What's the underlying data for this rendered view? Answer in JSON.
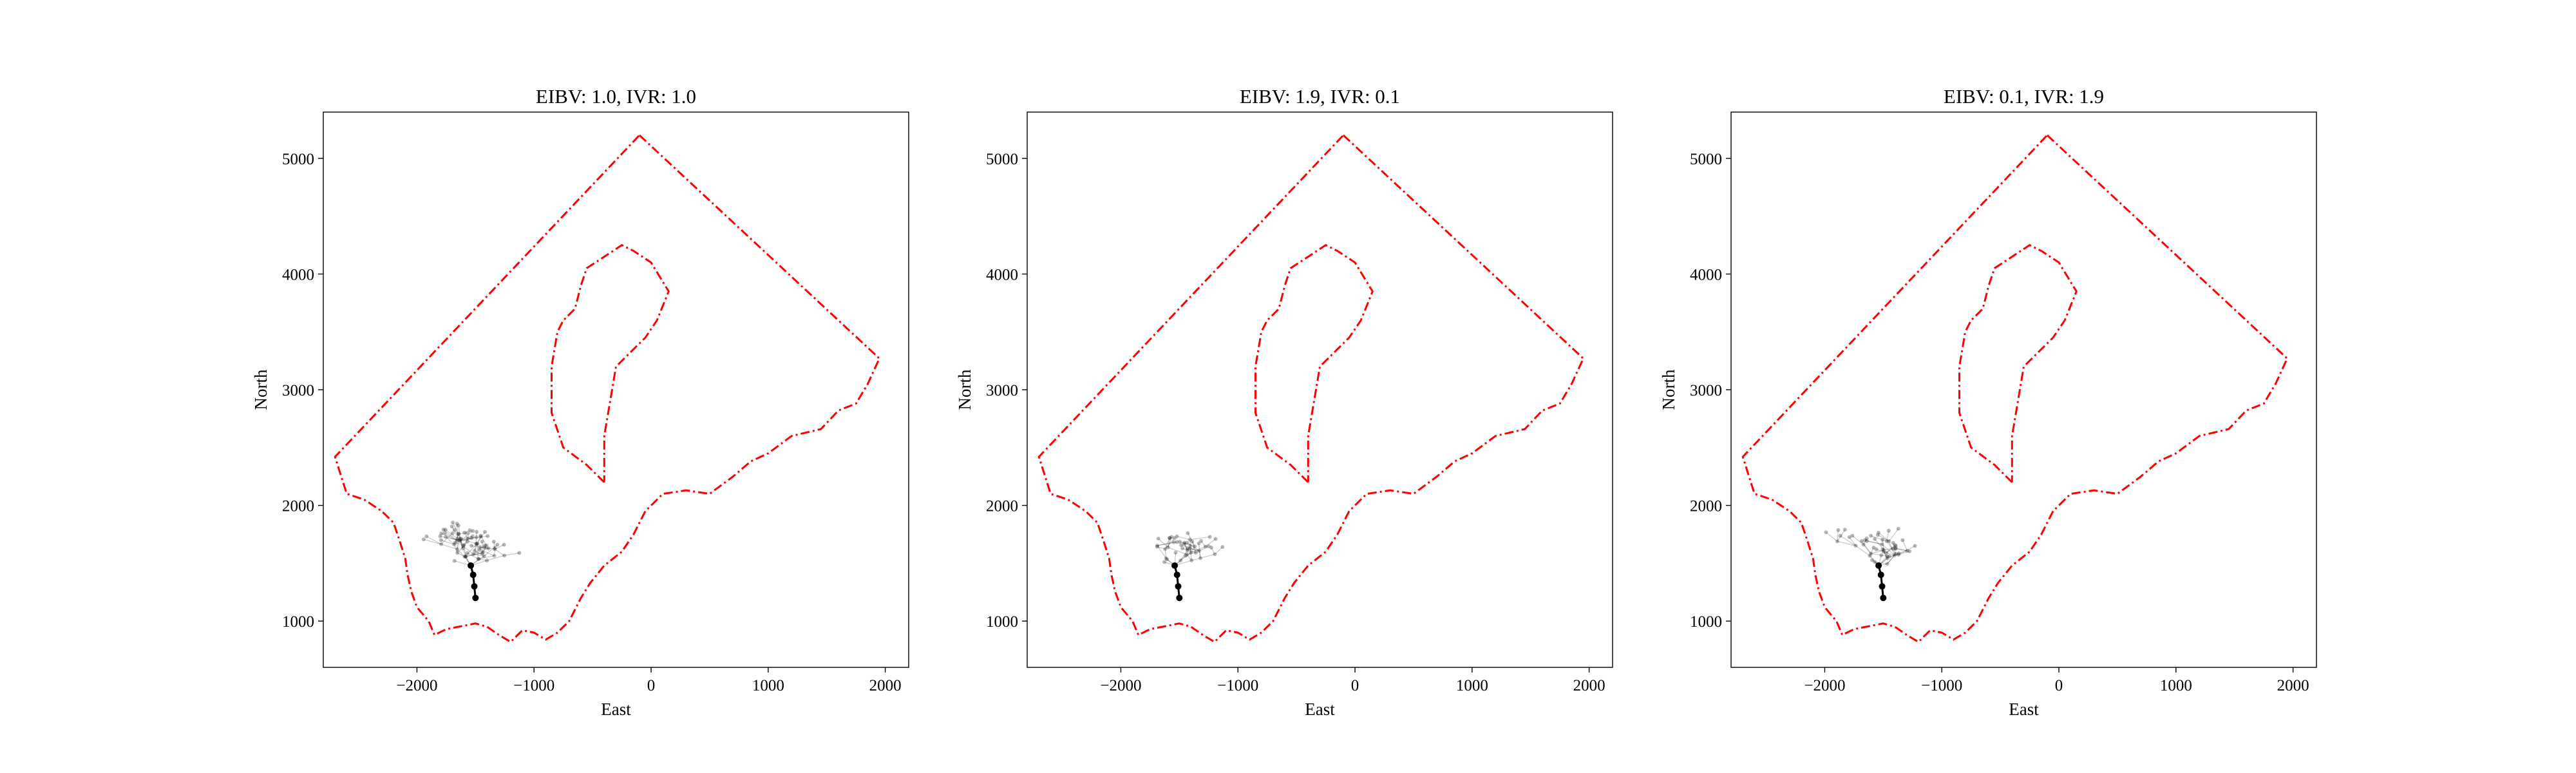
{
  "chart_data": [
    {
      "type": "line",
      "title": "EIBV: 1.0, IVR: 1.0",
      "xlabel": "East",
      "ylabel": "North",
      "xlim": [
        -2800,
        2200
      ],
      "ylim": [
        600,
        5400
      ],
      "xticks": [
        -2000,
        -1000,
        0,
        1000,
        2000
      ],
      "yticks": [
        1000,
        2000,
        3000,
        4000,
        5000
      ],
      "xtick_labels": [
        "−2000",
        "−1000",
        "0",
        "1000",
        "2000"
      ],
      "ytick_labels": [
        "1000",
        "2000",
        "3000",
        "4000",
        "5000"
      ],
      "tree_seed": 11
    },
    {
      "type": "line",
      "title": "EIBV: 1.9, IVR: 0.1",
      "xlabel": "East",
      "ylabel": "North",
      "xlim": [
        -2800,
        2200
      ],
      "ylim": [
        600,
        5400
      ],
      "xticks": [
        -2000,
        -1000,
        0,
        1000,
        2000
      ],
      "yticks": [
        1000,
        2000,
        3000,
        4000,
        5000
      ],
      "xtick_labels": [
        "−2000",
        "−1000",
        "0",
        "1000",
        "2000"
      ],
      "ytick_labels": [
        "1000",
        "2000",
        "3000",
        "4000",
        "5000"
      ],
      "tree_seed": 23
    },
    {
      "type": "line",
      "title": "EIBV: 0.1, IVR: 1.9",
      "xlabel": "East",
      "ylabel": "North",
      "xlim": [
        -2800,
        2200
      ],
      "ylim": [
        600,
        5400
      ],
      "xticks": [
        -2000,
        -1000,
        0,
        1000,
        2000
      ],
      "yticks": [
        1000,
        2000,
        3000,
        4000,
        5000
      ],
      "xtick_labels": [
        "−2000",
        "−1000",
        "0",
        "1000",
        "2000"
      ],
      "ytick_labels": [
        "1000",
        "2000",
        "3000",
        "4000",
        "5000"
      ],
      "tree_seed": 37
    }
  ],
  "shared": {
    "outer_boundary": [
      [
        -100,
        5200
      ],
      [
        1950,
        3270
      ],
      [
        1850,
        3050
      ],
      [
        1750,
        2880
      ],
      [
        1600,
        2820
      ],
      [
        1450,
        2660
      ],
      [
        1200,
        2600
      ],
      [
        1000,
        2450
      ],
      [
        850,
        2380
      ],
      [
        700,
        2250
      ],
      [
        500,
        2100
      ],
      [
        300,
        2130
      ],
      [
        100,
        2100
      ],
      [
        -50,
        1950
      ],
      [
        -150,
        1750
      ],
      [
        -250,
        1600
      ],
      [
        -400,
        1480
      ],
      [
        -520,
        1330
      ],
      [
        -600,
        1200
      ],
      [
        -700,
        1000
      ],
      [
        -800,
        900
      ],
      [
        -900,
        840
      ],
      [
        -1000,
        900
      ],
      [
        -1100,
        920
      ],
      [
        -1200,
        820
      ],
      [
        -1300,
        880
      ],
      [
        -1400,
        950
      ],
      [
        -1500,
        980
      ],
      [
        -1600,
        960
      ],
      [
        -1750,
        930
      ],
      [
        -1850,
        880
      ],
      [
        -1900,
        1000
      ],
      [
        -2000,
        1120
      ],
      [
        -2050,
        1260
      ],
      [
        -2080,
        1400
      ],
      [
        -2100,
        1540
      ],
      [
        -2150,
        1700
      ],
      [
        -2200,
        1850
      ],
      [
        -2300,
        1950
      ],
      [
        -2450,
        2050
      ],
      [
        -2600,
        2100
      ],
      [
        -2700,
        2420
      ],
      [
        -100,
        5200
      ]
    ],
    "inner_boundary": [
      [
        -400,
        2200
      ],
      [
        -550,
        2350
      ],
      [
        -750,
        2500
      ],
      [
        -850,
        2800
      ],
      [
        -850,
        3200
      ],
      [
        -800,
        3500
      ],
      [
        -750,
        3600
      ],
      [
        -650,
        3700
      ],
      [
        -600,
        3900
      ],
      [
        -550,
        4050
      ],
      [
        -400,
        4150
      ],
      [
        -250,
        4250
      ],
      [
        -150,
        4200
      ],
      [
        0,
        4100
      ],
      [
        150,
        3850
      ],
      [
        50,
        3600
      ],
      [
        -50,
        3450
      ],
      [
        -200,
        3300
      ],
      [
        -300,
        3200
      ],
      [
        -350,
        2900
      ],
      [
        -400,
        2600
      ],
      [
        -400,
        2200
      ]
    ],
    "selected_path": [
      [
        -1500,
        1200
      ],
      [
        -1510,
        1300
      ],
      [
        -1520,
        1400
      ],
      [
        -1540,
        1480
      ]
    ],
    "tree_root": [
      -1540,
      1480
    ],
    "line_color": "#ff0000",
    "path_color": "#000000"
  }
}
